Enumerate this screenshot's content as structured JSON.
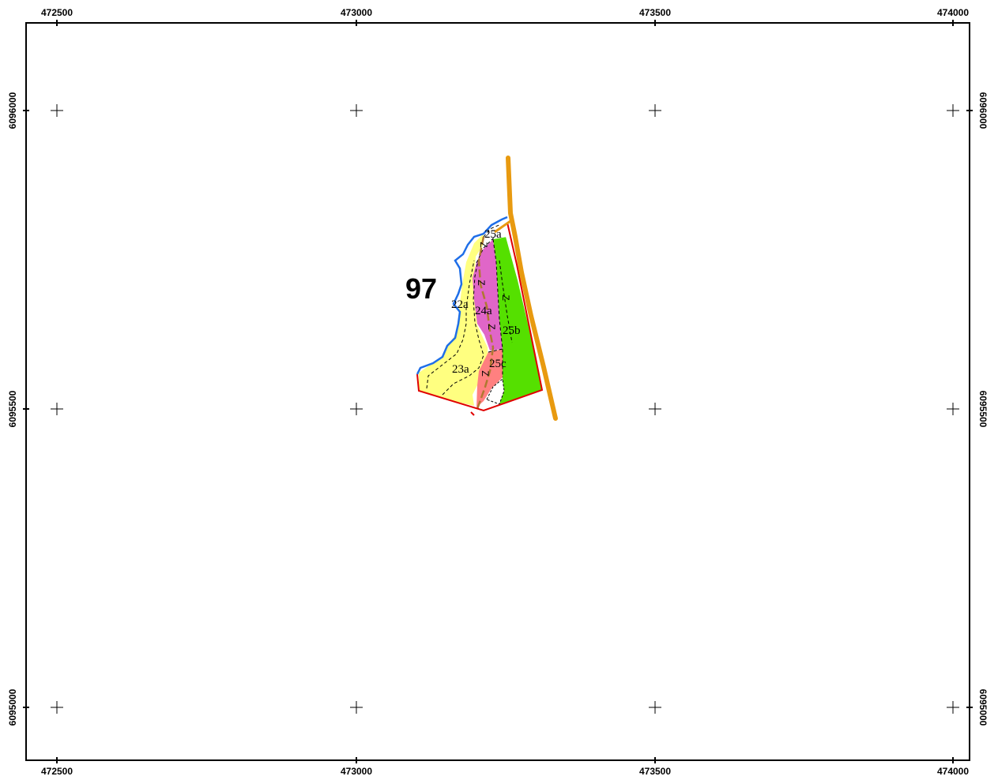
{
  "map": {
    "x_ticks": [
      "472500",
      "473000",
      "473500",
      "474000"
    ],
    "y_ticks": [
      "6096000",
      "6095500",
      "6095000"
    ],
    "compartment_label": "97",
    "stand_labels": [
      "25a",
      "22a",
      "24a",
      "25b",
      "23a",
      "25c"
    ],
    "z_marker": "Z",
    "colors": {
      "frame": "#000000",
      "stand_yellow": "#ffff80",
      "stand_magenta": "#e066c8",
      "stand_green": "#55e000",
      "stand_salmon": "#ff8080",
      "boundary_red": "#e00000",
      "coast_blue": "#1e6ee8",
      "road_orange": "#e89a10",
      "track_brown": "#b07830"
    }
  }
}
